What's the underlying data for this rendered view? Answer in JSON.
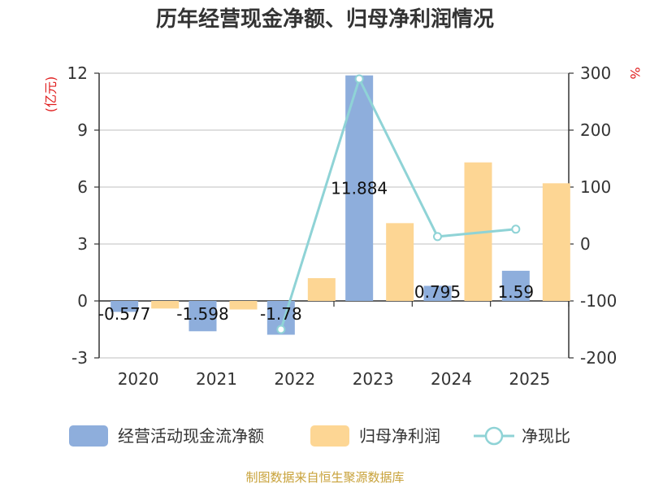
{
  "chart_data": {
    "type": "bar",
    "title": "历年经营现金净额、归母净利润情况",
    "categories": [
      "2020",
      "2021",
      "2022",
      "2023",
      "2024",
      "2025"
    ],
    "left_unit": "(亿元)",
    "right_unit": "%",
    "left_axis": {
      "min": -3,
      "max": 12,
      "ticks": [
        "-3",
        "0",
        "3",
        "6",
        "9",
        "12"
      ]
    },
    "right_axis": {
      "min": -200,
      "max": 300,
      "ticks": [
        "-200",
        "-100",
        "0",
        "100",
        "200",
        "300"
      ]
    },
    "series": [
      {
        "name": "经营活动现金流净额",
        "type": "bar",
        "color": "#8eaedc",
        "values": [
          -0.577,
          -1.598,
          -1.78,
          11.884,
          0.795,
          1.59
        ],
        "labels": [
          "-0.577",
          "-1.598",
          "-1.78",
          "11.884",
          "0.795",
          "1.59"
        ]
      },
      {
        "name": "归母净利润",
        "type": "bar",
        "color": "#fdd694",
        "values": [
          -0.4,
          -0.45,
          1.2,
          4.1,
          7.3,
          6.2
        ]
      },
      {
        "name": "净现比",
        "type": "line",
        "color": "#8fd3d6",
        "axis": "right",
        "values": [
          null,
          null,
          -150,
          290,
          13,
          26
        ]
      }
    ],
    "grid": true,
    "legend": "bottom"
  },
  "source": "制图数据来自恒生聚源数据库"
}
